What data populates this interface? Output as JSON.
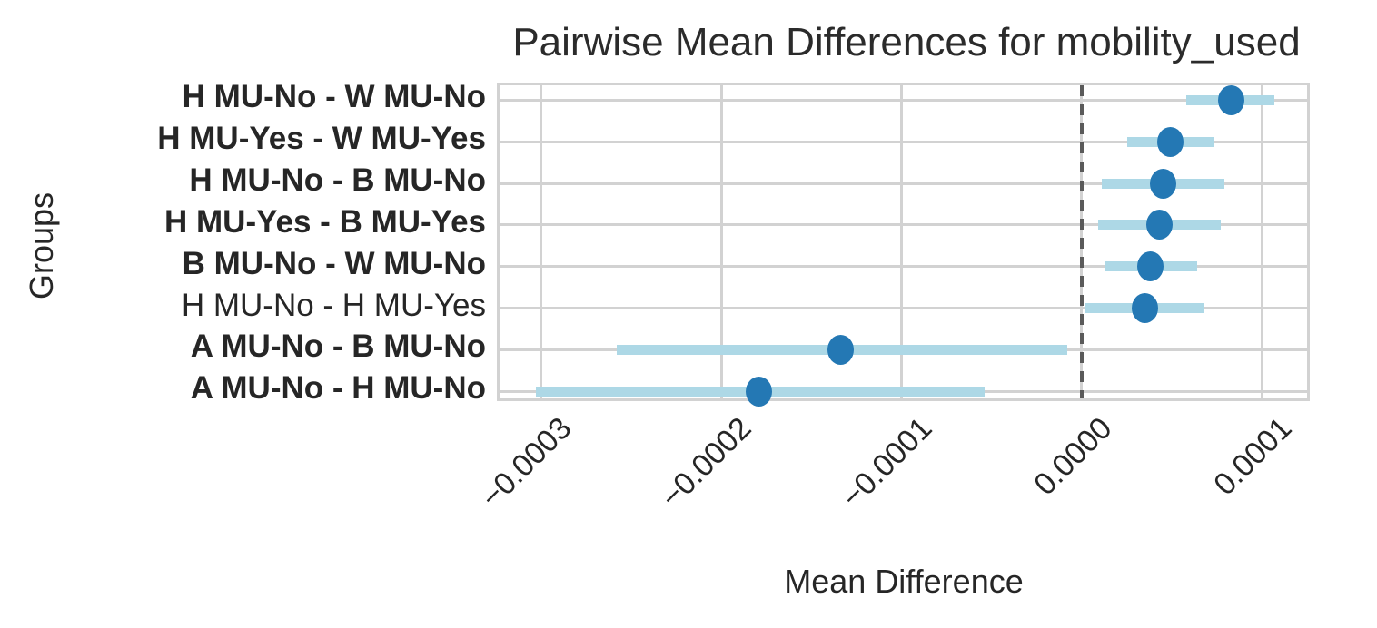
{
  "colors": {
    "dot": "#2478b4",
    "ci_bar": "#add8e6",
    "zero_line": "#5a5a5a",
    "grid": "#d2d2d2",
    "text": "#262626"
  },
  "chart_data": {
    "type": "scatter",
    "subtype": "pointrange-horizontal",
    "title": "Pairwise Mean Differences for mobility_used",
    "xlabel": "Mean Difference",
    "ylabel": "Groups",
    "xlim": [
      -0.000323,
      0.000128
    ],
    "grid": true,
    "zero_reference_line": 0.0,
    "xticks": [
      {
        "value": -0.0003,
        "label": "−0.0003"
      },
      {
        "value": -0.0002,
        "label": "−0.0002"
      },
      {
        "value": -0.0001,
        "label": "−0.0001"
      },
      {
        "value": 0.0,
        "label": "0.0000"
      },
      {
        "value": 0.0001,
        "label": "0.0001"
      }
    ],
    "rows": [
      {
        "label": "H MU-No - W MU-No",
        "bold": true,
        "mean": 8.3e-05,
        "ci_low": 5.8e-05,
        "ci_high": 0.000107
      },
      {
        "label": "H MU-Yes - W MU-Yes",
        "bold": true,
        "mean": 4.9e-05,
        "ci_low": 2.5e-05,
        "ci_high": 7.3e-05
      },
      {
        "label": "H MU-No - B MU-No",
        "bold": true,
        "mean": 4.5e-05,
        "ci_low": 1.1e-05,
        "ci_high": 7.9e-05
      },
      {
        "label": "H MU-Yes - B MU-Yes",
        "bold": true,
        "mean": 4.3e-05,
        "ci_low": 9e-06,
        "ci_high": 7.7e-05
      },
      {
        "label": "B MU-No - W MU-No",
        "bold": true,
        "mean": 3.8e-05,
        "ci_low": 1.3e-05,
        "ci_high": 6.4e-05
      },
      {
        "label": "H MU-No - H MU-Yes",
        "bold": false,
        "mean": 3.5e-05,
        "ci_low": 2e-06,
        "ci_high": 6.8e-05
      },
      {
        "label": "A MU-No - B MU-No",
        "bold": true,
        "mean": -0.000134,
        "ci_low": -0.000258,
        "ci_high": -8e-06
      },
      {
        "label": "A MU-No - H MU-No",
        "bold": true,
        "mean": -0.000179,
        "ci_low": -0.000303,
        "ci_high": -5.4e-05
      }
    ]
  }
}
